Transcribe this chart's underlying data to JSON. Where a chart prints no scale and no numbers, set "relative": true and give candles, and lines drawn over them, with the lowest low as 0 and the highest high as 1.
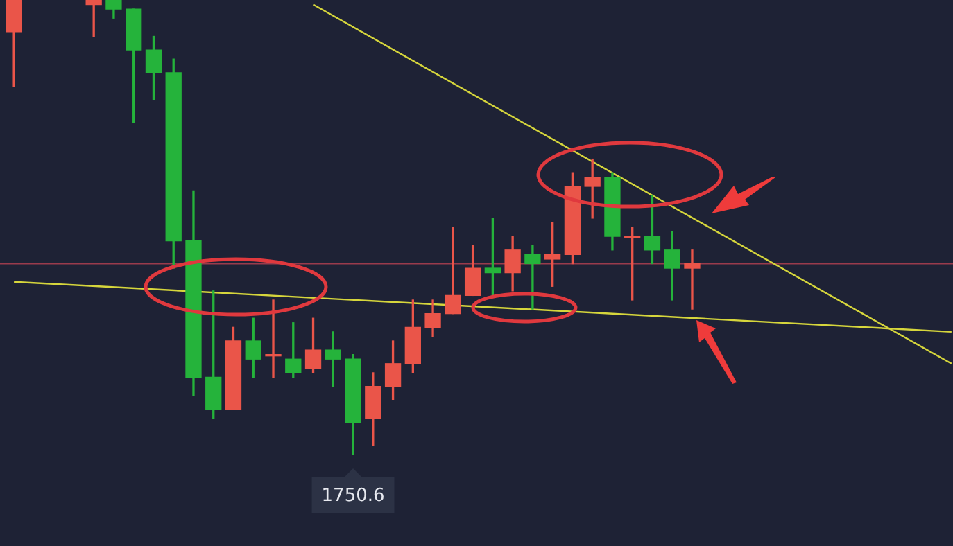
{
  "chart_data": {
    "type": "candlestick",
    "relative": true,
    "categories": [
      null,
      null,
      null,
      null,
      null,
      null,
      null,
      null,
      null,
      null,
      null,
      null,
      null,
      null,
      null,
      null,
      null,
      null,
      null,
      null,
      null,
      null,
      null,
      null,
      null,
      null,
      null,
      null,
      null,
      null,
      null,
      null,
      null,
      null,
      null,
      null,
      null,
      null,
      null,
      null,
      null,
      null,
      null,
      null,
      null,
      null,
      null,
      null
    ],
    "ohlc": [
      [
        0.93,
        1,
        0.81,
        1
      ],
      null,
      null,
      null,
      [
        0.99,
        1,
        0.92,
        1
      ],
      [
        1,
        1,
        0.96,
        0.98
      ],
      [
        0.98,
        0.98,
        0.73,
        0.89
      ],
      [
        0.89,
        0.92,
        0.78,
        0.84
      ],
      [
        0.84,
        0.87,
        0.41,
        0.47
      ],
      [
        0.47,
        0.58,
        0.13,
        0.17
      ],
      [
        0.17,
        0.36,
        0.08,
        0.1
      ],
      [
        0.1,
        0.28,
        0.1,
        0.25
      ],
      [
        0.25,
        0.3,
        0.17,
        0.21
      ],
      [
        0.22,
        0.34,
        0.17,
        0.22
      ],
      [
        0.21,
        0.29,
        0.17,
        0.18
      ],
      [
        0.19,
        0.3,
        0.18,
        0.23
      ],
      [
        0.23,
        0.27,
        0.15,
        0.21
      ],
      [
        0.21,
        0.22,
        0,
        0.07
      ],
      [
        0.08,
        0.18,
        0.02,
        0.15
      ],
      [
        0.15,
        0.25,
        0.12,
        0.2
      ],
      [
        0.2,
        0.34,
        0.18,
        0.28
      ],
      [
        0.28,
        0.34,
        0.26,
        0.31
      ],
      [
        0.31,
        0.5,
        0.31,
        0.35
      ],
      [
        0.35,
        0.46,
        0.35,
        0.41
      ],
      [
        0.41,
        0.52,
        0.35,
        0.4
      ],
      [
        0.4,
        0.48,
        0.36,
        0.45
      ],
      [
        0.44,
        0.46,
        0.32,
        0.42
      ],
      [
        0.43,
        0.51,
        0.37,
        0.44
      ],
      [
        0.44,
        0.62,
        0.42,
        0.59
      ],
      [
        0.59,
        0.65,
        0.52,
        0.61
      ],
      [
        0.61,
        0.62,
        0.45,
        0.48
      ],
      [
        0.48,
        0.5,
        0.34,
        0.48
      ],
      [
        0.48,
        0.57,
        0.42,
        0.45
      ],
      [
        0.45,
        0.49,
        0.34,
        0.41
      ],
      [
        0.41,
        0.45,
        0.32,
        0.42
      ],
      null,
      null,
      null,
      null,
      null,
      null,
      null,
      null,
      null,
      null,
      null,
      null,
      null
    ],
    "colors": [
      "#ea5549",
      null,
      null,
      null,
      "#ea5549",
      "#25b33b",
      "#25b33b",
      "#25b33b",
      "#25b33b",
      "#25b33b",
      "#25b33b",
      "#ea5549",
      "#25b33b",
      "#ea5549",
      "#25b33b",
      "#ea5549",
      "#25b33b",
      "#25b33b",
      "#ea5549",
      "#ea5549",
      "#ea5549",
      "#ea5549",
      "#ea5549",
      "#ea5549",
      "#25b33b",
      "#ea5549",
      "#25b33b",
      "#ea5549",
      "#ea5549",
      "#ea5549",
      "#25b33b",
      "#ea5549",
      "#25b33b",
      "#25b33b",
      "#ea5549",
      null,
      null,
      null,
      null,
      null,
      null,
      null,
      null,
      null,
      null,
      null,
      null,
      null
    ],
    "series": [
      {
        "type": "line",
        "values": [
          0.38,
          null,
          null,
          null,
          null,
          null,
          null,
          null,
          null,
          null,
          null,
          null,
          null,
          null,
          null,
          null,
          null,
          null,
          null,
          null,
          null,
          null,
          null,
          null,
          null,
          null,
          null,
          null,
          null,
          null,
          null,
          null,
          null,
          null,
          null,
          null,
          null,
          null,
          null,
          null,
          null,
          null,
          null,
          null,
          null,
          null,
          null,
          0.27
        ],
        "color": "#d6d63c"
      },
      {
        "type": "line",
        "values": [
          null,
          null,
          null,
          null,
          null,
          null,
          null,
          null,
          null,
          null,
          null,
          null,
          null,
          null,
          null,
          0.99,
          null,
          null,
          null,
          null,
          null,
          null,
          null,
          null,
          null,
          null,
          null,
          null,
          null,
          null,
          null,
          null,
          null,
          null,
          null,
          null,
          null,
          null,
          null,
          null,
          null,
          null,
          null,
          null,
          null,
          null,
          null,
          0.2
        ],
        "color": "#d6d63c"
      }
    ],
    "ref_lines": [
      {
        "axis": "y",
        "value": 0.42,
        "color": "#9a3b4c"
      }
    ],
    "annotations": [
      {
        "text": "1750.6",
        "y": 0
      }
    ]
  }
}
